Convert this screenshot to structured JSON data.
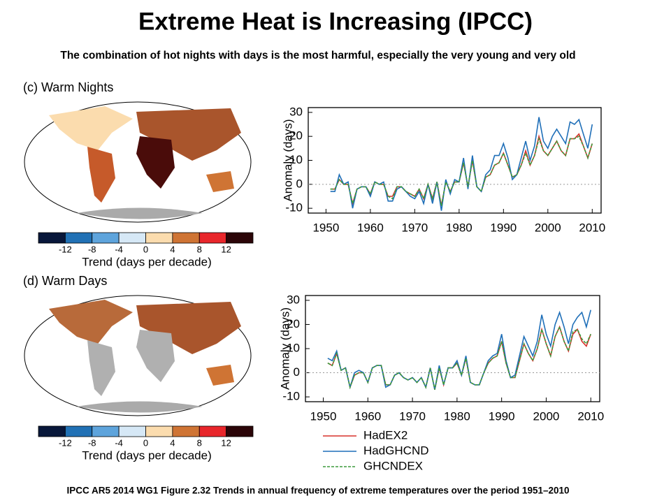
{
  "title": "Extreme Heat is Increasing (IPCC)",
  "subtitle": "The combination  of hot nights with days  is the most harmful, especially the very young and very old",
  "caption": "IPCC AR5 2014 WG1 Figure 2.32 Trends in annual frequency of extreme temperatures over the period 1951–2010",
  "maps": [
    {
      "label": "(c) Warm Nights",
      "colorbar_ticks": [
        -12,
        -8,
        -4,
        0,
        4,
        8,
        12
      ],
      "colorbar_label": "Trend (days per decade)",
      "colorbar_colors": [
        "#08173a",
        "#2171b5",
        "#5ea4dc",
        "#d6e8f6",
        "#fbdcae",
        "#cf7434",
        "#e8262b",
        "#2b0508"
      ]
    },
    {
      "label": "(d) Warm Days",
      "colorbar_ticks": [
        -12,
        -8,
        -4,
        0,
        4,
        8,
        12
      ],
      "colorbar_label": "Trend (days per decade)",
      "colorbar_colors": [
        "#08173a",
        "#2171b5",
        "#5ea4dc",
        "#d6e8f6",
        "#fbdcae",
        "#cf7434",
        "#e8262b",
        "#2b0508"
      ]
    }
  ],
  "chart_data": [
    {
      "type": "line",
      "ylabel": "Anomaly (days)",
      "xlim": [
        1946,
        2012
      ],
      "ylim": [
        -12,
        32
      ],
      "xticks": [
        1950,
        1960,
        1970,
        1980,
        1990,
        2000,
        2010
      ],
      "yticks": [
        -10,
        0,
        10,
        20,
        30
      ],
      "zero_line": true,
      "legend": false,
      "x": [
        1951,
        1952,
        1953,
        1954,
        1955,
        1956,
        1957,
        1958,
        1959,
        1960,
        1961,
        1962,
        1963,
        1964,
        1965,
        1966,
        1967,
        1968,
        1969,
        1970,
        1971,
        1972,
        1973,
        1974,
        1975,
        1976,
        1977,
        1978,
        1979,
        1980,
        1981,
        1982,
        1983,
        1984,
        1985,
        1986,
        1987,
        1988,
        1989,
        1990,
        1991,
        1992,
        1993,
        1994,
        1995,
        1996,
        1997,
        1998,
        1999,
        2000,
        2001,
        2002,
        2003,
        2004,
        2005,
        2006,
        2007,
        2008,
        2009,
        2010
      ],
      "series": [
        {
          "color": "#d7322b",
          "dash": false,
          "values": [
            -2,
            -2,
            2,
            0,
            0,
            -8,
            -2,
            -1,
            -1,
            -4,
            1,
            0,
            0,
            -5,
            -5,
            -1,
            -1,
            -3,
            -4,
            -5,
            -2,
            -6,
            0,
            -6,
            1,
            -9,
            1,
            -3,
            1,
            1,
            9,
            -1,
            10,
            -1,
            -3,
            3,
            4,
            8,
            9,
            13,
            8,
            3,
            4,
            8,
            14,
            8,
            12,
            20,
            14,
            12,
            15,
            18,
            14,
            12,
            19,
            19,
            21,
            16,
            11,
            17
          ]
        },
        {
          "color": "#1f6fb8",
          "dash": false,
          "values": [
            -3,
            -3,
            4,
            0,
            1,
            -10,
            -2,
            -1,
            -1,
            -5,
            1,
            0,
            1,
            -7,
            -7,
            -2,
            -1,
            -3,
            -5,
            -6,
            -3,
            -8,
            0,
            -8,
            1,
            -11,
            2,
            -4,
            2,
            1,
            11,
            -2,
            12,
            -1,
            -3,
            4,
            6,
            12,
            12,
            17,
            11,
            2,
            4,
            11,
            18,
            10,
            16,
            28,
            18,
            15,
            20,
            23,
            20,
            17,
            26,
            25,
            27,
            21,
            15,
            25
          ]
        },
        {
          "color": "#3c9a3c",
          "dash": true,
          "values": [
            -2,
            -2,
            2,
            0,
            0,
            -8,
            -2,
            -1,
            -1,
            -4,
            1,
            0,
            0,
            -5,
            -6,
            -1,
            -1,
            -3,
            -4,
            -5,
            -2,
            -6,
            0,
            -6,
            1,
            -9,
            1,
            -3,
            1,
            1,
            9,
            -1,
            10,
            -1,
            -3,
            3,
            4,
            8,
            9,
            13,
            8,
            3,
            4,
            8,
            13,
            8,
            12,
            19,
            14,
            12,
            15,
            18,
            14,
            12,
            19,
            19,
            20,
            16,
            11,
            17
          ]
        }
      ]
    },
    {
      "type": "line",
      "ylabel": "Anomaly (days)",
      "xlim": [
        1946,
        2012
      ],
      "ylim": [
        -12,
        32
      ],
      "xticks": [
        1950,
        1960,
        1970,
        1980,
        1990,
        2000,
        2010
      ],
      "yticks": [
        -10,
        0,
        10,
        20,
        30
      ],
      "zero_line": true,
      "legend": true,
      "x": [
        1951,
        1952,
        1953,
        1954,
        1955,
        1956,
        1957,
        1958,
        1959,
        1960,
        1961,
        1962,
        1963,
        1964,
        1965,
        1966,
        1967,
        1968,
        1969,
        1970,
        1971,
        1972,
        1973,
        1974,
        1975,
        1976,
        1977,
        1978,
        1979,
        1980,
        1981,
        1982,
        1983,
        1984,
        1985,
        1986,
        1987,
        1988,
        1989,
        1990,
        1991,
        1992,
        1993,
        1994,
        1995,
        1996,
        1997,
        1998,
        1999,
        2000,
        2001,
        2002,
        2003,
        2004,
        2005,
        2006,
        2007,
        2008,
        2009,
        2010
      ],
      "series": [
        {
          "name": "HadEX2",
          "color": "#d7322b",
          "dash": false,
          "values": [
            4,
            3,
            8,
            1,
            2,
            -6,
            -1,
            0,
            0,
            -4,
            2,
            3,
            3,
            -5,
            -5,
            -1,
            0,
            -2,
            -3,
            -2,
            -4,
            -2,
            -6,
            2,
            -7,
            2,
            -5,
            2,
            2,
            4,
            -1,
            6,
            -4,
            -5,
            -5,
            0,
            4,
            6,
            7,
            13,
            4,
            -2,
            -2,
            5,
            12,
            8,
            5,
            10,
            18,
            12,
            7,
            15,
            19,
            13,
            9,
            16,
            18,
            13,
            11,
            16
          ]
        },
        {
          "name": "HadGHCND",
          "color": "#1f6fb8",
          "dash": false,
          "values": [
            6,
            5,
            9,
            1,
            2,
            -6,
            0,
            1,
            0,
            -4,
            2,
            3,
            3,
            -6,
            -5,
            -1,
            0,
            -2,
            -3,
            -2,
            -4,
            -2,
            -6,
            2,
            -7,
            3,
            -5,
            2,
            2,
            5,
            -1,
            7,
            -4,
            -5,
            -5,
            0,
            5,
            7,
            8,
            16,
            5,
            -2,
            -1,
            7,
            15,
            11,
            7,
            13,
            24,
            16,
            11,
            20,
            25,
            19,
            12,
            20,
            23,
            25,
            19,
            26
          ]
        },
        {
          "name": "GHCNDEX",
          "color": "#3c9a3c",
          "dash": true,
          "values": [
            4,
            3,
            8,
            1,
            2,
            -6,
            -1,
            0,
            0,
            -4,
            2,
            3,
            3,
            -5,
            -5,
            -1,
            0,
            -2,
            -3,
            -2,
            -4,
            -2,
            -6,
            2,
            -7,
            2,
            -5,
            2,
            2,
            4,
            -1,
            6,
            -4,
            -5,
            -5,
            0,
            4,
            6,
            7,
            13,
            4,
            -2,
            -2,
            5,
            12,
            8,
            5,
            10,
            18,
            12,
            7,
            15,
            19,
            13,
            9,
            17,
            18,
            14,
            12,
            16
          ]
        }
      ]
    }
  ]
}
